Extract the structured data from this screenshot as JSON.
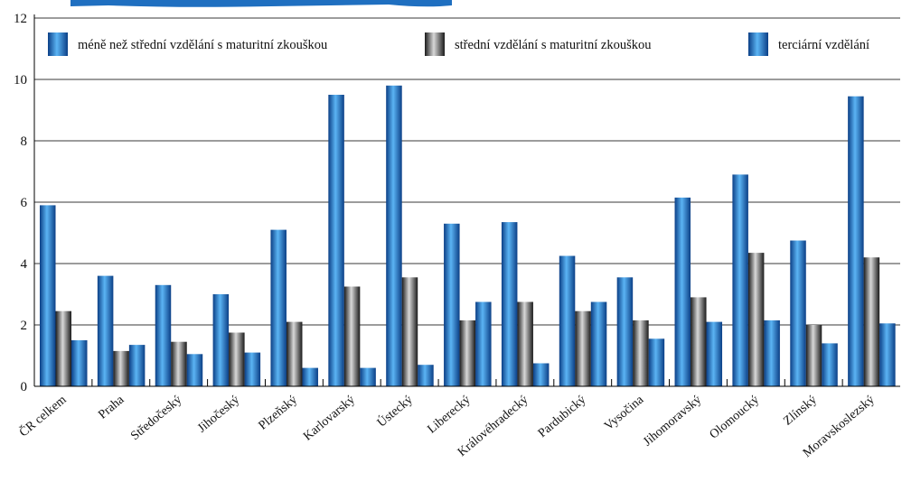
{
  "chart_data": {
    "type": "bar",
    "ylim": [
      0,
      12
    ],
    "yticks": [
      0,
      2,
      4,
      6,
      8,
      10,
      12
    ],
    "grid": true,
    "legend_position": "top",
    "categories": [
      "ČR celkem",
      "Praha",
      "Středočeský",
      "Jihočeský",
      "Plzeňský",
      "Karlovarský",
      "Ústecký",
      "Liberecký",
      "Královéhradecký",
      "Pardubický",
      "Vysočina",
      "Jihomoravský",
      "Olomoucký",
      "Zlínský",
      "Moravskoslezský"
    ],
    "series": [
      {
        "name": "méně než střední vzdělání s maturitní zkouškou",
        "color": "#1e7fd0",
        "values": [
          5.9,
          3.6,
          3.3,
          3.0,
          5.1,
          9.5,
          9.8,
          5.3,
          5.35,
          4.25,
          3.55,
          6.15,
          6.9,
          4.75,
          9.45
        ]
      },
      {
        "name": "střední vzdělání s maturitní zkouškou",
        "color": "#555555",
        "values": [
          2.45,
          1.15,
          1.45,
          1.75,
          2.1,
          3.25,
          3.55,
          2.15,
          2.75,
          2.45,
          2.15,
          2.9,
          4.35,
          2.0,
          4.2
        ]
      },
      {
        "name": "terciární vzdělání",
        "color": "#1e7fd0",
        "values": [
          1.5,
          1.35,
          1.05,
          1.1,
          0.6,
          0.6,
          0.7,
          2.75,
          0.75,
          2.75,
          1.55,
          2.1,
          2.15,
          1.4,
          2.05
        ]
      }
    ]
  }
}
